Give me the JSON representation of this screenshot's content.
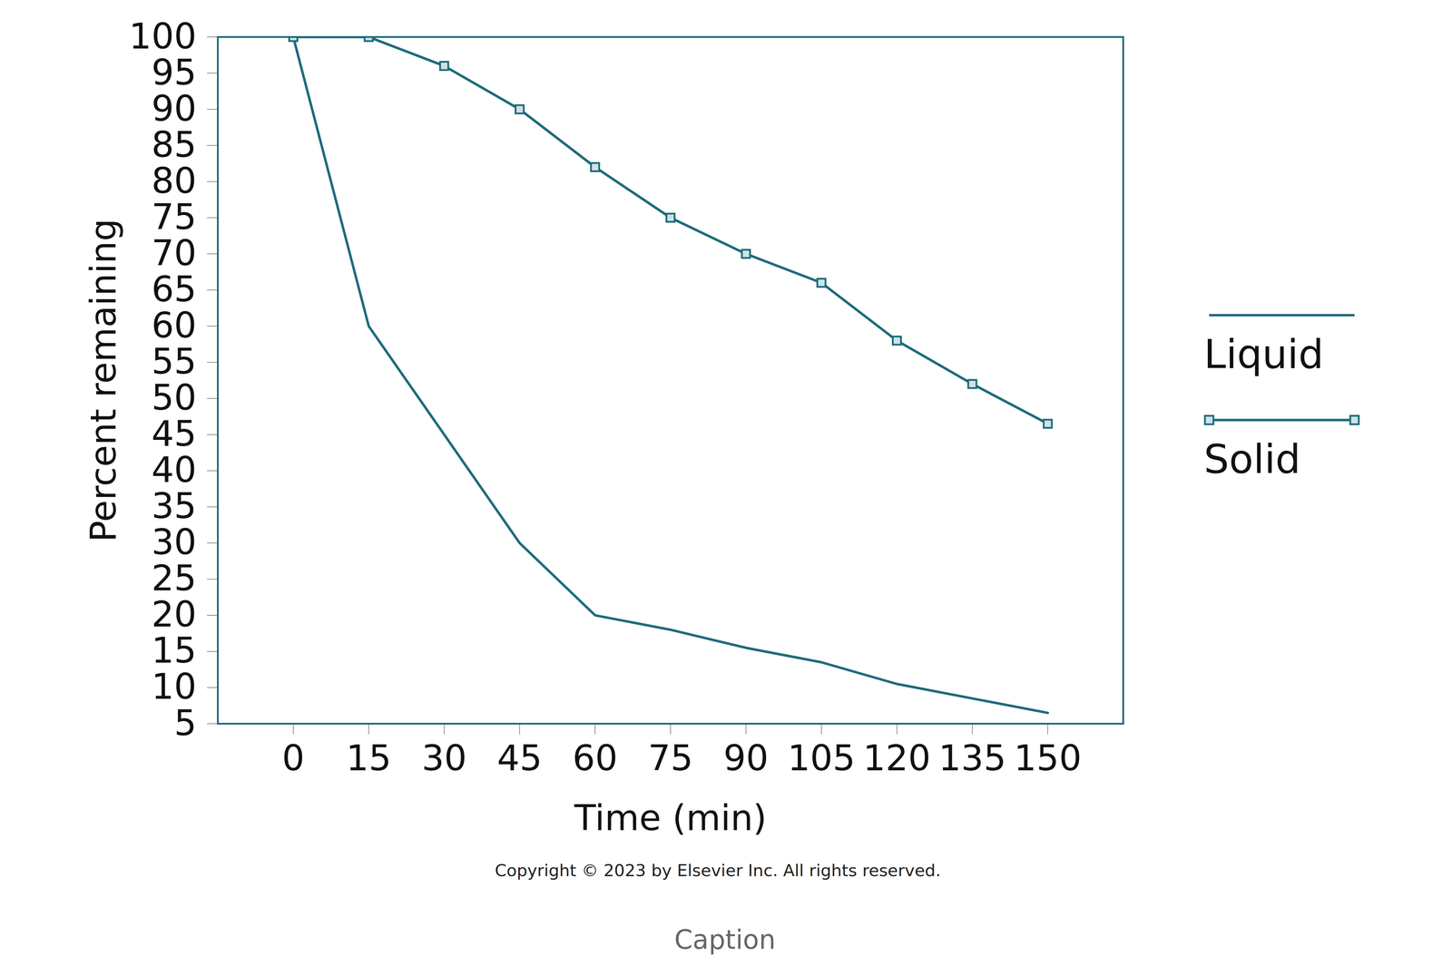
{
  "chart_data": {
    "type": "line",
    "x_label": "Time (min)",
    "y_label": "Percent remaining",
    "x": [
      0,
      15,
      30,
      45,
      60,
      75,
      90,
      105,
      120,
      135,
      150
    ],
    "series": [
      {
        "name": "Liquid",
        "color": "#1e6b7b",
        "values": [
          100,
          60,
          45,
          30,
          20,
          18,
          15.5,
          13.5,
          10.5,
          8.5,
          6.5
        ]
      },
      {
        "name": "Solid",
        "color": "#1e6b7b",
        "marker": "square",
        "values": [
          100,
          100,
          96,
          90,
          82,
          75,
          70,
          66,
          58,
          52,
          46.5
        ]
      }
    ],
    "xlim": [
      -15,
      165
    ],
    "xticks": [
      0,
      15,
      30,
      45,
      60,
      75,
      90,
      105,
      120,
      135,
      150
    ],
    "ylim": [
      5,
      100
    ],
    "yticks": [
      5,
      10,
      15,
      20,
      25,
      30,
      35,
      40,
      45,
      50,
      55,
      60,
      65,
      70,
      75,
      80,
      85,
      90,
      95,
      100
    ],
    "grid": false,
    "legend": "right",
    "annotations": [
      "Copyright © 2023 by Elsevier Inc. All rights reserved."
    ],
    "caption": "Caption"
  }
}
